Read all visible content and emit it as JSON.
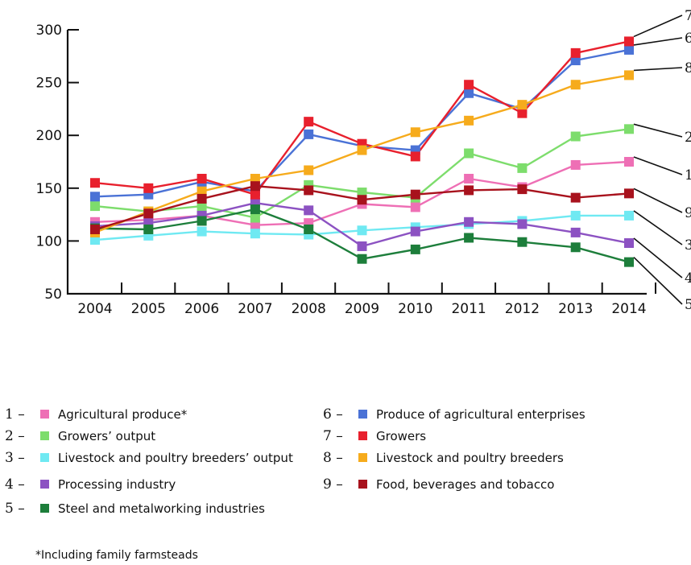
{
  "chart_data": {
    "type": "line",
    "x": [
      "2004",
      "2005",
      "2006",
      "2007",
      "2008",
      "2009",
      "2010",
      "2011",
      "2012",
      "2013",
      "2014"
    ],
    "ylim": [
      50,
      300
    ],
    "yticks": [
      50,
      100,
      150,
      200,
      250,
      300
    ],
    "grid": false,
    "series": [
      {
        "id": "1",
        "name": "Agricultural produce*",
        "color": "#ee6fb5",
        "values": [
          118,
          120,
          124,
          115,
          117,
          135,
          132,
          159,
          151,
          172,
          175
        ]
      },
      {
        "id": "2",
        "name": "Growers’ output",
        "color": "#7ddd6c",
        "values": [
          133,
          128,
          133,
          122,
          153,
          146,
          141,
          183,
          169,
          199,
          206
        ]
      },
      {
        "id": "3",
        "name": "Livestock and poultry breeders’ output",
        "color": "#6fe9f2",
        "values": [
          101,
          105,
          109,
          107,
          106,
          110,
          113,
          116,
          119,
          124,
          124
        ]
      },
      {
        "id": "4",
        "name": "Processing industry",
        "color": "#8c52c2",
        "values": [
          114,
          117,
          124,
          136,
          129,
          95,
          109,
          118,
          116,
          108,
          98
        ]
      },
      {
        "id": "5",
        "name": "Steel and metalworking industries",
        "color": "#1d7e3b",
        "values": [
          112,
          111,
          119,
          130,
          111,
          83,
          92,
          103,
          99,
          94,
          80
        ]
      },
      {
        "id": "6",
        "name": "Produce of agricultural enterprises",
        "color": "#4a72d6",
        "values": [
          142,
          144,
          156,
          147,
          201,
          190,
          186,
          240,
          225,
          271,
          281
        ]
      },
      {
        "id": "7",
        "name": "Growers",
        "color": "#e8202d",
        "values": [
          155,
          150,
          159,
          144,
          213,
          192,
          180,
          248,
          221,
          278,
          289
        ]
      },
      {
        "id": "8",
        "name": "Livestock and poultry breeders",
        "color": "#f6ab1c",
        "values": [
          108,
          128,
          147,
          159,
          167,
          186,
          203,
          214,
          229,
          248,
          257
        ]
      },
      {
        "id": "9",
        "name": "Food, beverages and tobacco",
        "color": "#a8121d",
        "values": [
          111,
          126,
          140,
          152,
          148,
          139,
          144,
          148,
          149,
          141,
          145
        ]
      }
    ],
    "line_end_labels": [
      "7",
      "6",
      "8",
      "2",
      "1",
      "9",
      "3",
      "4",
      "5"
    ],
    "legend": [
      {
        "number": "1 –",
        "label": "Agricultural produce*",
        "color": "#ee6fb5"
      },
      {
        "number": "2 –",
        "label": "Growers’ output",
        "color": "#7ddd6c"
      },
      {
        "number": "3 –",
        "label": "Livestock and poultry breeders’ output",
        "color": "#6fe9f2"
      },
      {
        "number": "4 –",
        "label": "Processing industry",
        "color": "#8c52c2"
      },
      {
        "number": "5 –",
        "label": "Steel and metalworking industries",
        "color": "#1d7e3b"
      },
      {
        "number": "6 –",
        "label": "Produce of agricultural enterprises",
        "color": "#4a72d6"
      },
      {
        "number": "7 –",
        "label": "Growers",
        "color": "#e8202d"
      },
      {
        "number": "8 –",
        "label": "Livestock and poultry breeders",
        "color": "#f6ab1c"
      },
      {
        "number": "9 –",
        "label": "Food, beverages and tobacco",
        "color": "#a8121d"
      }
    ],
    "footnote": "*Including family farmsteads"
  }
}
